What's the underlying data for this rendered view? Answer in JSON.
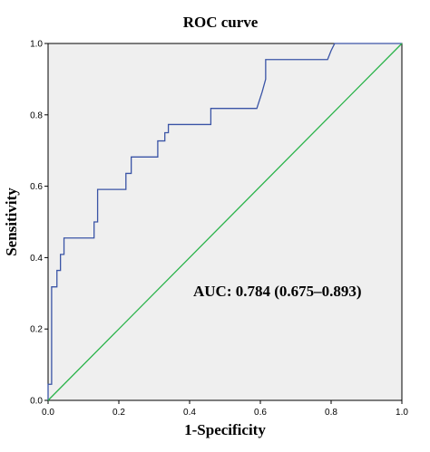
{
  "chart_data": {
    "type": "line",
    "title": "ROC curve",
    "xlabel": "1-Specificity",
    "ylabel": "Sensitivity",
    "xlim": [
      0,
      1
    ],
    "ylim": [
      0,
      1
    ],
    "xticks": [
      0.0,
      0.2,
      0.4,
      0.6,
      0.8,
      1.0
    ],
    "yticks": [
      0.0,
      0.2,
      0.4,
      0.6,
      0.8,
      1.0
    ],
    "xtick_labels": [
      "0.0",
      "0.2",
      "0.4",
      "0.6",
      "0.8",
      "1.0"
    ],
    "ytick_labels": [
      "0.0",
      "0.2",
      "0.4",
      "0.6",
      "0.8",
      "1.0"
    ],
    "grid": false,
    "background": "#efefef",
    "annotation": "AUC: 0.784 (0.675–0.893)",
    "series": [
      {
        "color": "#3a54a6",
        "x": [
          0.0,
          0.0,
          0.01,
          0.01,
          0.025,
          0.025,
          0.035,
          0.035,
          0.045,
          0.045,
          0.13,
          0.13,
          0.14,
          0.14,
          0.22,
          0.22,
          0.235,
          0.235,
          0.31,
          0.31,
          0.33,
          0.33,
          0.34,
          0.34,
          0.46,
          0.46,
          0.59,
          0.605,
          0.615,
          0.615,
          0.79,
          0.8,
          0.81,
          1.0
        ],
        "y": [
          0.0,
          0.045,
          0.045,
          0.318,
          0.318,
          0.364,
          0.364,
          0.409,
          0.409,
          0.455,
          0.455,
          0.5,
          0.5,
          0.591,
          0.591,
          0.636,
          0.636,
          0.682,
          0.682,
          0.727,
          0.727,
          0.75,
          0.75,
          0.773,
          0.773,
          0.818,
          0.818,
          0.864,
          0.9,
          0.955,
          0.955,
          0.98,
          1.0,
          1.0
        ]
      },
      {
        "color": "#2ab34a",
        "x": [
          0.0,
          1.0
        ],
        "y": [
          0.0,
          1.0
        ]
      }
    ]
  }
}
